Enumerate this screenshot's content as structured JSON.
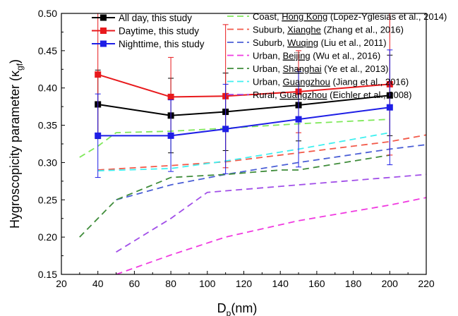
{
  "chart_data": {
    "type": "line",
    "xlabel": "D",
    "xlabel_sub": "p",
    "xlabel_unit": "(nm)",
    "ylabel": "Hygroscopicity parameter (κ",
    "ylabel_sub": "gf",
    "ylabel_close": ")",
    "xlim": [
      20,
      220
    ],
    "ylim": [
      0.15,
      0.5
    ],
    "x_ticks": [
      20,
      40,
      60,
      80,
      100,
      120,
      140,
      160,
      180,
      200,
      220
    ],
    "x_tick_labels": [
      "20",
      "40",
      "60",
      "80",
      "100",
      "120",
      "140",
      "160",
      "180",
      "200",
      "220"
    ],
    "y_ticks": [
      0.15,
      0.2,
      0.25,
      0.3,
      0.35,
      0.4,
      0.45,
      0.5
    ],
    "y_tick_labels": [
      "0.15",
      "0.20",
      "0.25",
      "0.30",
      "0.35",
      "0.40",
      "0.45",
      "0.50"
    ],
    "grid": false,
    "legend_placement": "top",
    "series": [
      {
        "name": "All day, this study",
        "color": "#000000",
        "style": "solid-marker",
        "x": [
          40,
          80,
          110,
          150,
          200
        ],
        "y": [
          0.378,
          0.363,
          0.368,
          0.377,
          0.39
        ],
        "err": [
          0.046,
          0.05,
          0.052,
          0.048,
          0.054
        ]
      },
      {
        "name": "Daytime, this study",
        "color": "#e8191c",
        "style": "solid-marker",
        "x": [
          40,
          80,
          110,
          150,
          200
        ],
        "y": [
          0.418,
          0.388,
          0.389,
          0.395,
          0.405
        ],
        "err": [
          0.085,
          0.053,
          0.096,
          0.055,
          0.095
        ]
      },
      {
        "name": "Nighttime, this study",
        "color": "#1e1ee6",
        "style": "solid-marker",
        "x": [
          40,
          80,
          110,
          150,
          200
        ],
        "y": [
          0.336,
          0.336,
          0.345,
          0.358,
          0.374
        ],
        "err": [
          0.056,
          0.048,
          0.06,
          0.064,
          0.077
        ]
      },
      {
        "name_prefix": "Coast, ",
        "name_place": "Hong Kong",
        "name_suffix": " (Lopez-Yglesias et al., 2014)",
        "color": "#7fe85a",
        "style": "dashed",
        "x": [
          30,
          40,
          50,
          80,
          110,
          150,
          200
        ],
        "y": [
          0.307,
          0.322,
          0.34,
          0.342,
          0.346,
          0.352,
          0.358
        ]
      },
      {
        "name_prefix": "Suburb, ",
        "name_place": "Xianghe",
        "name_suffix": " (Zhang et al., 2016)",
        "color": "#f25a4a",
        "style": "dashed",
        "x": [
          40,
          80,
          110,
          150,
          200,
          220
        ],
        "y": [
          0.29,
          0.296,
          0.301,
          0.313,
          0.328,
          0.337
        ]
      },
      {
        "name_prefix": "Suburb, ",
        "name_place": "Wuqing",
        "name_suffix": " (Liu et al., 2011)",
        "color": "#4b5fd6",
        "style": "dashed",
        "x": [
          50,
          80,
          110,
          150,
          200,
          220
        ],
        "y": [
          0.25,
          0.27,
          0.284,
          0.3,
          0.318,
          0.324
        ]
      },
      {
        "name_prefix": "Urban, ",
        "name_place": "Beijing",
        "name_suffix": " (Wu et al., 2016)",
        "color": "#f03ae0",
        "style": "dashed",
        "x": [
          50,
          80,
          110,
          150,
          200,
          220
        ],
        "y": [
          0.15,
          0.176,
          0.2,
          0.222,
          0.243,
          0.253
        ]
      },
      {
        "name_prefix": "Urban, ",
        "name_place": "Shanghai",
        "name_suffix": " (Ye et al., 2013)",
        "color": "#3f8c3a",
        "style": "dashed",
        "x": [
          30,
          50,
          80,
          110,
          140,
          150,
          200
        ],
        "y": [
          0.2,
          0.25,
          0.28,
          0.284,
          0.29,
          0.29,
          0.31
        ]
      },
      {
        "name_prefix": "Urban, ",
        "name_place": "Guangzhou",
        "name_suffix": " (Jiang et al., 2016)",
        "color": "#3ff0f0",
        "style": "dashed",
        "x": [
          40,
          80,
          110,
          150,
          200
        ],
        "y": [
          0.289,
          0.292,
          0.302,
          0.318,
          0.34
        ]
      },
      {
        "name_prefix": "Rural, ",
        "name_place": "Guangzhou",
        "name_suffix": " (Eichler et al., 2008)",
        "color": "#a14ee8",
        "style": "dashed",
        "x": [
          50,
          80,
          100,
          150,
          200,
          220
        ],
        "y": [
          0.18,
          0.225,
          0.26,
          0.27,
          0.28,
          0.284
        ]
      }
    ]
  }
}
